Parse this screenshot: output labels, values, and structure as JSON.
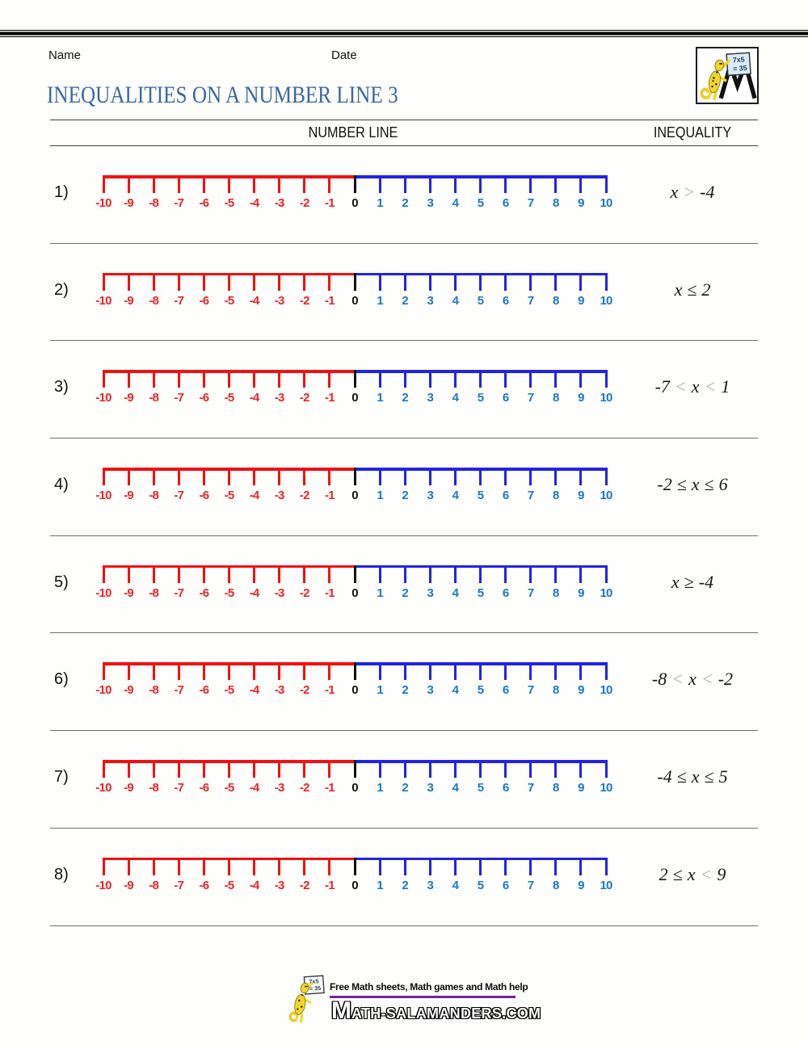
{
  "page": {
    "name_label": "Name",
    "date_label": "Date",
    "title": "INEQUALITIES ON A NUMBER LINE 3"
  },
  "columns": {
    "number_line": "NUMBER LINE",
    "inequality": "INEQUALITY"
  },
  "number_line": {
    "values": [
      -10,
      -9,
      -8,
      -7,
      -6,
      -5,
      -4,
      -3,
      -2,
      -1,
      0,
      1,
      2,
      3,
      4,
      5,
      6,
      7,
      8,
      9,
      10
    ],
    "negative_line_color": "#f50f0f",
    "positive_line_color": "#2222ea",
    "zero_tick_color": "#111111",
    "negative_label_color": "#e8252c",
    "positive_label_color": "#1b79c0",
    "zero_label_color": "#111111"
  },
  "rows": [
    {
      "label": "1)",
      "inequality": [
        {
          "text": "x"
        },
        {
          "text": ">",
          "muted": true
        },
        {
          "text": "-4"
        }
      ]
    },
    {
      "label": "2)",
      "inequality": [
        {
          "text": "x"
        },
        {
          "text": "≤"
        },
        {
          "text": "2"
        }
      ]
    },
    {
      "label": "3)",
      "inequality": [
        {
          "text": "-7"
        },
        {
          "text": "<",
          "muted": true
        },
        {
          "text": "x"
        },
        {
          "text": "<",
          "muted": true
        },
        {
          "text": "1"
        }
      ]
    },
    {
      "label": "4)",
      "inequality": [
        {
          "text": "-2"
        },
        {
          "text": "≤"
        },
        {
          "text": "x"
        },
        {
          "text": "≤"
        },
        {
          "text": "6"
        }
      ]
    },
    {
      "label": "5)",
      "inequality": [
        {
          "text": "x"
        },
        {
          "text": "≥"
        },
        {
          "text": "-4"
        }
      ]
    },
    {
      "label": "6)",
      "inequality": [
        {
          "text": "-8"
        },
        {
          "text": "<",
          "muted": true
        },
        {
          "text": "x"
        },
        {
          "text": "<",
          "muted": true
        },
        {
          "text": "-2"
        }
      ]
    },
    {
      "label": "7)",
      "inequality": [
        {
          "text": "-4"
        },
        {
          "text": "≤"
        },
        {
          "text": "x"
        },
        {
          "text": "≤"
        },
        {
          "text": "5"
        }
      ]
    },
    {
      "label": "8)",
      "inequality": [
        {
          "text": "2"
        },
        {
          "text": "≤"
        },
        {
          "text": "x"
        },
        {
          "text": "<",
          "muted": true
        },
        {
          "text": "9"
        }
      ]
    }
  ],
  "badge": {
    "sign_line1": "7x5",
    "sign_line2": "= 35"
  },
  "footer": {
    "tagline": "Free Math sheets, Math games and Math help",
    "wordmark_initial": "M",
    "wordmark_rest": "ATH-SALAMANDERS.COM",
    "sign_line1": "7x5",
    "sign_line2": "= 35",
    "accent_color": "#7b1fa2"
  }
}
